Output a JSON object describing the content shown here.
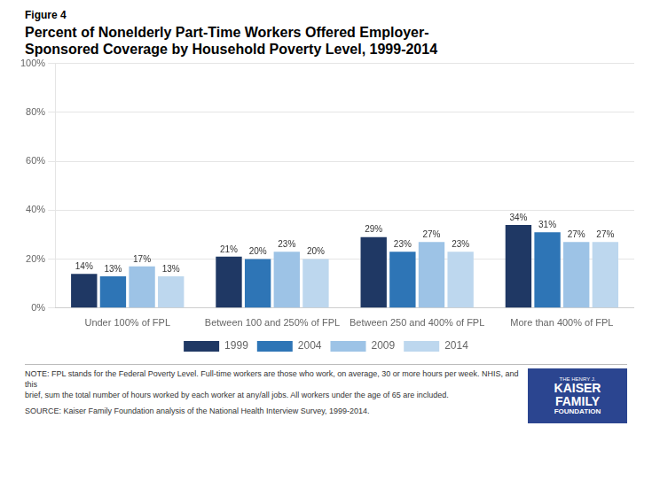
{
  "chart_data": {
    "type": "bar",
    "title": [
      "Percent of Nonelderly Part-Time Workers Offered Employer-",
      "Sponsored Coverage by Household Poverty Level, 1999-2014"
    ],
    "annotations": [
      "Figure 4",
      "NOTE: FPL stands for the Federal Poverty Level.  Full-time workers are those who work, on average, 30 or more hours per week.  NHIS, and this\nbrief, sum the total number of hours worked by each worker at any/all jobs.  All workers under the age of 65 are included.",
      "SOURCE: Kaiser Family Foundation analysis of the National Health Interview Survey, 1999-2014.",
      "THE HENRY J.",
      "KAISER",
      "FAMILY",
      "FOUNDATION"
    ],
    "categories": [
      "Under 100% of FPL",
      "Between 100 and 250% of FPL",
      "Between 250 and 400% of FPL",
      "More than 400% of FPL"
    ],
    "series": [
      {
        "name": "1999",
        "color": "#1F3864",
        "values": [
          14,
          21,
          29,
          34
        ],
        "value_labels": [
          "14%",
          "21%",
          "29%",
          "34%"
        ]
      },
      {
        "name": "2004",
        "color": "#2E75B6",
        "values": [
          13,
          20,
          23,
          31
        ],
        "value_labels": [
          "13%",
          "20%",
          "23%",
          "31%"
        ]
      },
      {
        "name": "2009",
        "color": "#9DC3E6",
        "values": [
          17,
          23,
          27,
          27
        ],
        "value_labels": [
          "17%",
          "23%",
          "27%",
          "27%"
        ]
      },
      {
        "name": "2014",
        "color": "#BDD7EE",
        "values": [
          13,
          20,
          23,
          27
        ],
        "value_labels": [
          "13%",
          "20%",
          "23%",
          "27%"
        ]
      }
    ],
    "ylim": [
      0,
      100
    ],
    "yticks": [
      {
        "value": 0,
        "label": "0%"
      },
      {
        "value": 20,
        "label": "20%"
      },
      {
        "value": 40,
        "label": "40%"
      },
      {
        "value": 60,
        "label": "60%"
      },
      {
        "value": 80,
        "label": "80%"
      },
      {
        "value": 100,
        "label": "100%"
      }
    ],
    "grid": true,
    "legend": "bottom",
    "data_labels": true
  }
}
